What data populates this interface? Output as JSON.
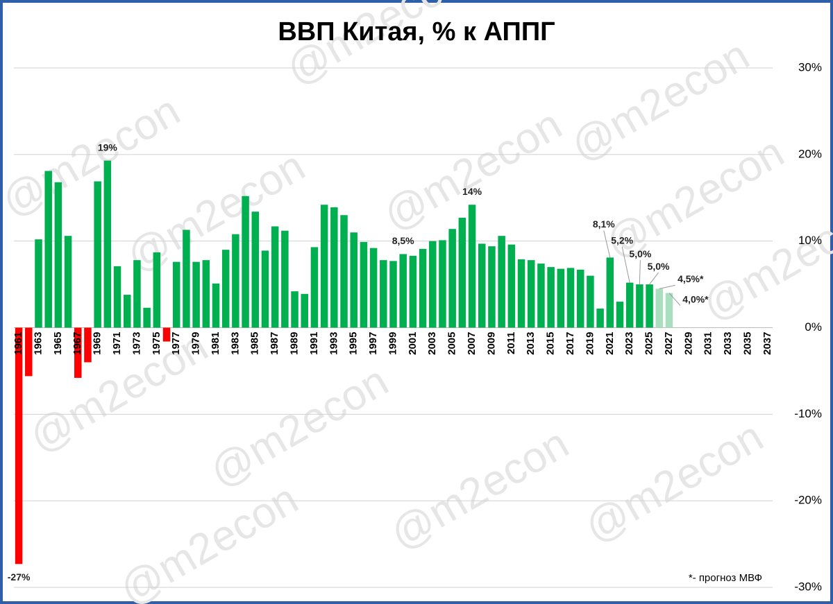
{
  "chart_data": {
    "type": "bar",
    "title": "ВВП Китая, % к АППГ",
    "footnote": "*- прогноз МВФ",
    "watermark": "@m2econ",
    "categories": [
      "1961",
      null,
      "1963",
      null,
      "1965",
      null,
      "1967",
      null,
      "1969",
      null,
      "1971",
      null,
      "1973",
      null,
      "1975",
      null,
      "1977",
      null,
      "1979",
      null,
      "1981",
      null,
      "1983",
      null,
      "1985",
      null,
      "1987",
      null,
      "1989",
      null,
      "1991",
      null,
      "1993",
      null,
      "1995",
      null,
      "1997",
      null,
      "1999",
      null,
      "2001",
      null,
      "2003",
      null,
      "2005",
      null,
      "2007",
      null,
      "2009",
      null,
      "2011",
      null,
      "2013",
      null,
      "2015",
      null,
      "2017",
      null,
      "2019",
      null,
      "2021",
      null,
      "2023",
      null,
      "2025",
      null,
      "2027",
      null,
      "2029",
      null,
      "2031",
      null,
      "2033",
      null,
      "2035",
      null,
      "2037"
    ],
    "values": [
      -27.3,
      -5.6,
      10.2,
      18.1,
      16.8,
      10.6,
      -5.8,
      -4.0,
      16.9,
      19.3,
      7.1,
      3.8,
      7.8,
      2.3,
      8.7,
      -1.6,
      7.6,
      11.3,
      7.6,
      7.8,
      5.1,
      9.0,
      10.8,
      15.2,
      13.4,
      8.9,
      11.7,
      11.2,
      4.2,
      3.9,
      9.3,
      14.2,
      13.9,
      13.0,
      11.0,
      9.9,
      9.2,
      7.8,
      7.7,
      8.5,
      8.3,
      9.1,
      10.0,
      10.1,
      11.4,
      12.7,
      14.2,
      9.7,
      9.4,
      10.6,
      9.6,
      7.9,
      7.8,
      7.4,
      7.0,
      6.8,
      6.9,
      6.7,
      6.0,
      2.2,
      8.1,
      3.0,
      5.2,
      5.0,
      5.0,
      4.5,
      4.0,
      null,
      null,
      null,
      null,
      null,
      null,
      null,
      null,
      null,
      null
    ],
    "value_labels": [
      "-27%",
      null,
      null,
      null,
      null,
      null,
      null,
      null,
      null,
      "19%",
      null,
      null,
      null,
      null,
      null,
      null,
      null,
      null,
      null,
      null,
      null,
      null,
      null,
      null,
      null,
      null,
      null,
      null,
      null,
      null,
      null,
      null,
      null,
      null,
      null,
      null,
      null,
      null,
      null,
      "8,5%",
      null,
      null,
      null,
      null,
      null,
      null,
      "14%",
      null,
      null,
      null,
      null,
      null,
      null,
      null,
      null,
      null,
      null,
      null,
      null,
      null,
      "8,1%",
      null,
      "5,2%",
      "5,0%",
      "5,0%",
      "4,5%*",
      "4,0%*",
      null,
      null,
      null,
      null,
      null,
      null,
      null,
      null,
      null,
      null
    ],
    "colors": [
      "#ff0000",
      "#ff0000",
      "#00b050",
      "#00b050",
      "#00b050",
      "#00b050",
      "#ff0000",
      "#ff0000",
      "#00b050",
      "#00b050",
      "#00b050",
      "#00b050",
      "#00b050",
      "#00b050",
      "#00b050",
      "#ff0000",
      "#00b050",
      "#00b050",
      "#00b050",
      "#00b050",
      "#00b050",
      "#00b050",
      "#00b050",
      "#00b050",
      "#00b050",
      "#00b050",
      "#00b050",
      "#00b050",
      "#00b050",
      "#00b050",
      "#00b050",
      "#00b050",
      "#00b050",
      "#00b050",
      "#00b050",
      "#00b050",
      "#00b050",
      "#00b050",
      "#00b050",
      "#00b050",
      "#00b050",
      "#00b050",
      "#00b050",
      "#00b050",
      "#00b050",
      "#00b050",
      "#00b050",
      "#00b050",
      "#00b050",
      "#00b050",
      "#00b050",
      "#00b050",
      "#00b050",
      "#00b050",
      "#00b050",
      "#00b050",
      "#00b050",
      "#00b050",
      "#00b050",
      "#00b050",
      "#00b050",
      "#00b050",
      "#00b050",
      "#00b050",
      "#00b050",
      "#a9dfbf",
      "#a9dfbf",
      null,
      null,
      null,
      null,
      null,
      null,
      null,
      null,
      null,
      null
    ],
    "ylim": [
      -30,
      30
    ],
    "yticks": [
      {
        "value": -30,
        "label": "-30%"
      },
      {
        "value": -20,
        "label": "-20%"
      },
      {
        "value": -10,
        "label": "-10%"
      },
      {
        "value": 0,
        "label": "0%"
      },
      {
        "value": 10,
        "label": "10%"
      },
      {
        "value": 20,
        "label": "20%"
      },
      {
        "value": 30,
        "label": "30%"
      }
    ],
    "grid": true
  }
}
